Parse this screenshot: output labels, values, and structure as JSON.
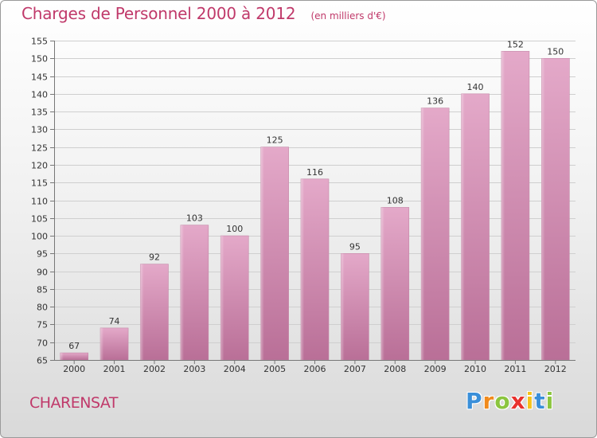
{
  "header": {
    "title": "Charges de Personnel 2000 à 2012",
    "subtitle": "(en milliers d'€)"
  },
  "footer": {
    "place": "CHARENSAT",
    "logo_letters": [
      {
        "char": "P",
        "color": "#3a8fd9"
      },
      {
        "char": "r",
        "color": "#f08a1c"
      },
      {
        "char": "o",
        "color": "#8bc53f"
      },
      {
        "char": "x",
        "color": "#e8322e"
      },
      {
        "char": "i",
        "color": "#f6c21b"
      },
      {
        "char": "t",
        "color": "#3a8fd9"
      },
      {
        "char": "i",
        "color": "#8bc53f"
      }
    ]
  },
  "chart_data": {
    "type": "bar",
    "categories": [
      "2000",
      "2001",
      "2002",
      "2003",
      "2004",
      "2005",
      "2006",
      "2007",
      "2008",
      "2009",
      "2010",
      "2011",
      "2012"
    ],
    "values": [
      67,
      74,
      92,
      103,
      100,
      125,
      116,
      95,
      108,
      136,
      140,
      152,
      150
    ],
    "ylim": [
      65,
      155
    ],
    "yticks": [
      65,
      70,
      75,
      80,
      85,
      90,
      95,
      100,
      105,
      110,
      115,
      120,
      125,
      130,
      135,
      140,
      145,
      150,
      155
    ],
    "grid": true,
    "bar_color": "#d98fb6"
  }
}
